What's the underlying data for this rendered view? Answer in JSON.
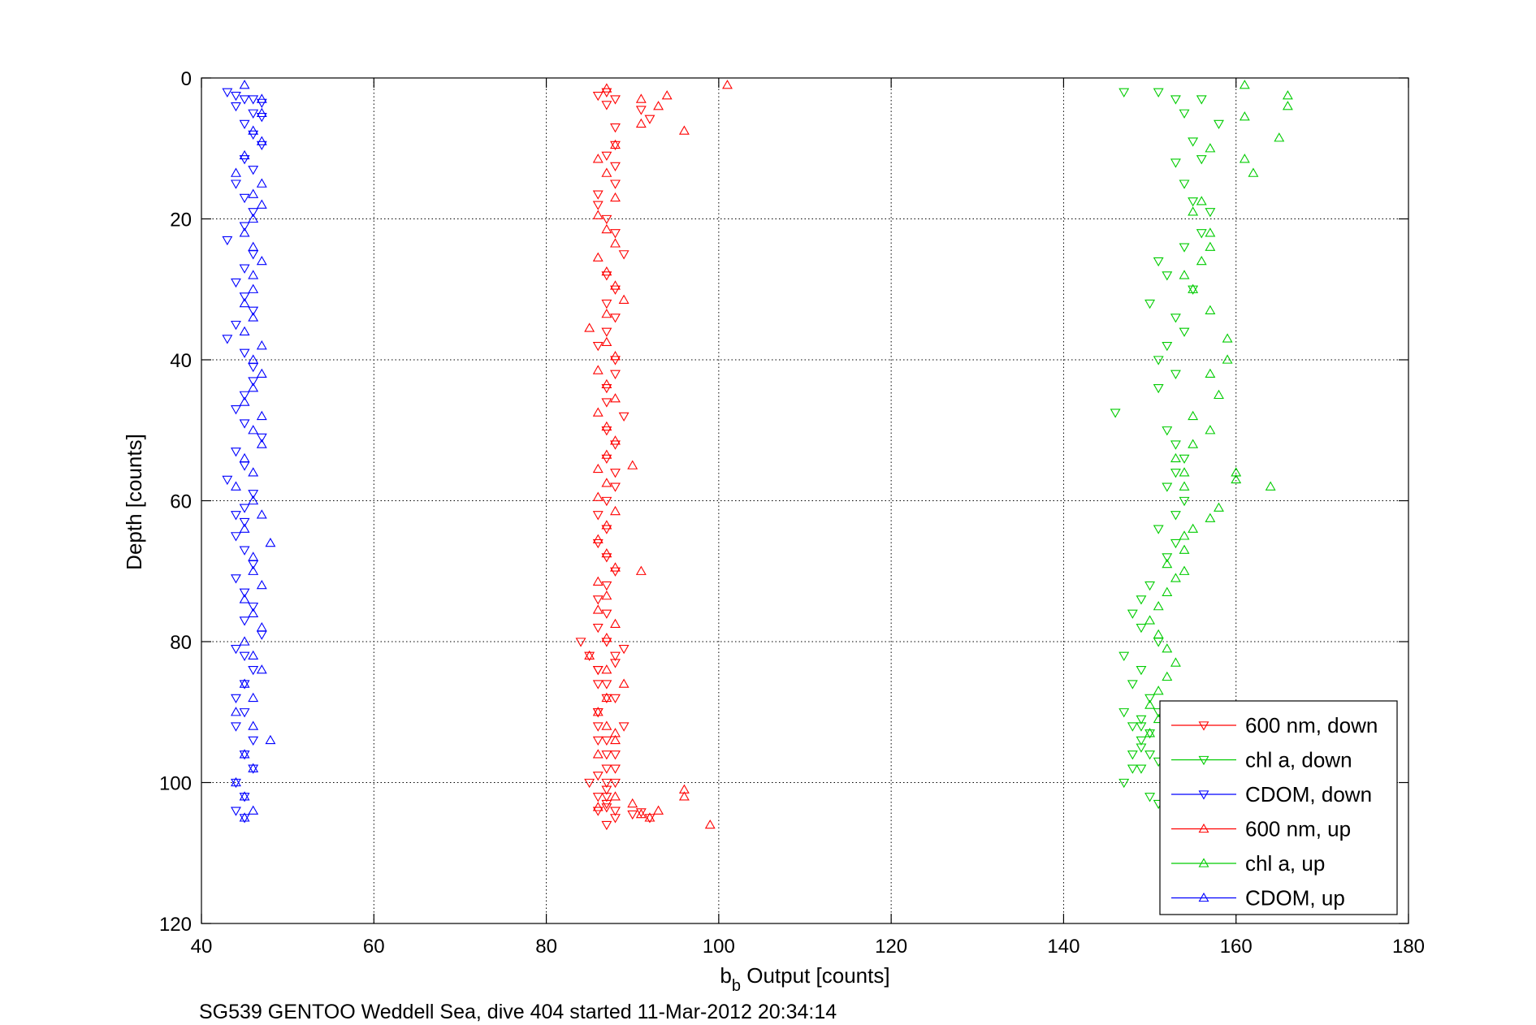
{
  "chart_data": {
    "type": "scatter",
    "xlabel_main": "b",
    "xlabel_sub": "b",
    "xlabel_rest": " Output [counts]",
    "ylabel": "Depth [counts]",
    "footer": "SG539 GENTOO Weddell Sea, dive 404 started 11-Mar-2012 20:34:14",
    "xlim": [
      40,
      180
    ],
    "ylim": [
      0,
      120
    ],
    "y_reversed": true,
    "grid": true,
    "xticks": [
      40,
      60,
      80,
      100,
      120,
      140,
      160,
      180
    ],
    "yticks": [
      0,
      20,
      40,
      60,
      80,
      100,
      120
    ],
    "legend_position": "bottom-right",
    "series": [
      {
        "name": "600 nm, down",
        "color": "#ff0000",
        "marker": "triangle-down",
        "x": [
          87,
          86,
          88,
          87,
          91,
          92,
          88,
          88,
          87,
          88,
          88,
          86,
          86,
          87,
          88,
          89,
          87,
          88,
          87,
          88,
          87,
          86,
          88,
          88,
          87,
          87,
          89,
          87,
          88,
          87,
          88,
          88,
          87,
          86,
          87,
          86,
          87,
          88,
          87,
          86,
          87,
          86,
          87,
          89,
          88,
          88,
          86,
          87,
          88,
          86,
          86,
          87,
          87,
          88,
          86,
          88,
          87,
          87,
          84,
          85,
          86,
          86,
          87,
          86,
          89,
          86,
          88,
          87,
          87,
          86,
          87,
          88,
          85,
          87,
          86,
          88,
          90,
          92,
          91,
          87
        ],
        "y": [
          2,
          2.5,
          3,
          3.8,
          4.5,
          5.8,
          7,
          9.5,
          11,
          12.5,
          15,
          16.5,
          18,
          20,
          22,
          25,
          28,
          30,
          32,
          34,
          36,
          38,
          40,
          42,
          44,
          46,
          48,
          50,
          52,
          54,
          56,
          58,
          60,
          62,
          64,
          66,
          68,
          70,
          72,
          74,
          76,
          78,
          80,
          81,
          82,
          83,
          84,
          86,
          88,
          90,
          92,
          94,
          96,
          98,
          99,
          100,
          101,
          102,
          80,
          82,
          84,
          86,
          88,
          90,
          92,
          94,
          96,
          98,
          100,
          102,
          103.5,
          104,
          100,
          103,
          104,
          105,
          104.5,
          105,
          104.2,
          106
        ]
      },
      {
        "name": "chl a, down",
        "color": "#00cc00",
        "marker": "triangle-down",
        "x": [
          147,
          151,
          153,
          156,
          154,
          155,
          158,
          156,
          153,
          154,
          155,
          157,
          156,
          154,
          151,
          152,
          155,
          150,
          153,
          154,
          152,
          151,
          153,
          151,
          146,
          152,
          153,
          154,
          153,
          152,
          154,
          153,
          151,
          153,
          152,
          150,
          149,
          148,
          149,
          151,
          147,
          149,
          148,
          150,
          147,
          149,
          148,
          150,
          149,
          148,
          151,
          149,
          147,
          152,
          150,
          151,
          149,
          148,
          150,
          151,
          149
        ],
        "y": [
          2,
          2,
          3,
          3,
          5,
          9,
          6.5,
          11.5,
          12,
          15,
          17.5,
          19,
          22,
          24,
          26,
          28,
          30,
          32,
          34,
          36,
          38,
          40,
          42,
          44,
          47.5,
          50,
          52,
          54,
          56,
          58,
          60,
          62,
          64,
          66,
          68,
          72,
          74,
          76,
          78,
          80,
          82,
          84,
          86,
          88,
          90,
          91,
          92,
          93,
          94,
          96,
          97,
          98,
          100,
          101,
          102,
          103,
          95,
          98,
          96,
          90,
          92
        ]
      },
      {
        "name": "CDOM, down",
        "color": "#0000ff",
        "marker": "triangle-down",
        "x": [
          43,
          44,
          45,
          46,
          47,
          44,
          46,
          47,
          45,
          46,
          47,
          45,
          46,
          44,
          45,
          46,
          45,
          43,
          46,
          45,
          44,
          45,
          46,
          44,
          43,
          45,
          46,
          46,
          45,
          44,
          45,
          47,
          44,
          45,
          43,
          46,
          45,
          44,
          45,
          44,
          45,
          46,
          44,
          45,
          46,
          45,
          47,
          44,
          45,
          46,
          45,
          44,
          45,
          44,
          46,
          45,
          46,
          44,
          45,
          44,
          45
        ],
        "y": [
          2,
          2.5,
          3,
          3,
          3.5,
          4,
          5,
          5.5,
          6.5,
          8,
          9.5,
          11.5,
          13,
          15,
          17,
          19,
          21,
          23,
          25,
          27,
          29,
          31,
          33,
          35,
          37,
          39,
          41,
          43,
          45,
          47,
          49,
          51,
          53,
          55,
          57,
          59,
          61,
          62,
          63,
          65,
          67,
          69,
          71,
          73,
          75,
          77,
          79,
          81,
          82,
          84,
          86,
          88,
          90,
          92,
          94,
          96,
          98,
          100,
          102,
          104,
          105
        ]
      },
      {
        "name": "600 nm, up",
        "color": "#ff0000",
        "marker": "triangle-up",
        "x": [
          101,
          87,
          91,
          94,
          93,
          91,
          96,
          88,
          86,
          87,
          88,
          86,
          87,
          88,
          86,
          87,
          88,
          89,
          87,
          85,
          87,
          88,
          86,
          87,
          88,
          86,
          87,
          88,
          87,
          86,
          87,
          86,
          88,
          90,
          87,
          86,
          87,
          88,
          86,
          91,
          87,
          86,
          88,
          87,
          85,
          87,
          89,
          87,
          86,
          87,
          88,
          86,
          88,
          96,
          96,
          93,
          92,
          91,
          90,
          99,
          88,
          86
        ],
        "y": [
          1,
          1.5,
          3,
          2.5,
          4,
          6.5,
          7.5,
          9.5,
          11.5,
          13.5,
          17,
          19.5,
          21.5,
          23.5,
          25.5,
          27.5,
          29.5,
          31.5,
          33.5,
          35.5,
          37.5,
          39.5,
          41.5,
          43.5,
          45.5,
          47.5,
          49.5,
          51.5,
          53.5,
          55.5,
          57.5,
          59.5,
          61.5,
          55,
          63.5,
          65.5,
          67.5,
          69.5,
          71.5,
          70,
          73.5,
          75.5,
          77.5,
          79.5,
          82,
          84,
          86,
          88,
          90,
          92,
          94,
          96,
          93,
          102,
          101,
          104,
          105,
          104.5,
          103,
          106,
          102,
          103.5
        ]
      },
      {
        "name": "chl a, up",
        "color": "#00cc00",
        "marker": "triangle-up",
        "x": [
          161,
          166,
          166,
          161,
          165,
          157,
          161,
          162,
          156,
          155,
          157,
          157,
          156,
          154,
          155,
          157,
          159,
          159,
          157,
          158,
          155,
          157,
          155,
          153,
          154,
          154,
          160,
          164,
          160,
          158,
          157,
          155,
          154,
          154,
          152,
          153,
          152,
          151,
          150,
          151,
          152,
          153,
          152,
          151,
          150,
          151,
          150,
          154
        ],
        "y": [
          1,
          2.5,
          4,
          5.5,
          8.5,
          10,
          11.5,
          13.5,
          17.5,
          19,
          22,
          24,
          26,
          28,
          30,
          33,
          37,
          40,
          42,
          45,
          48,
          50,
          52,
          54,
          56,
          58,
          56,
          58,
          57,
          61,
          62.5,
          64,
          65,
          67,
          69,
          71,
          73,
          75,
          77,
          79,
          81,
          83,
          85,
          87,
          89,
          91,
          93,
          70
        ]
      },
      {
        "name": "CDOM, up",
        "color": "#0000ff",
        "marker": "triangle-up",
        "x": [
          45,
          47,
          47,
          46,
          47,
          45,
          44,
          47,
          46,
          47,
          46,
          45,
          46,
          47,
          46,
          46,
          45,
          46,
          45,
          47,
          46,
          47,
          46,
          45,
          47,
          46,
          47,
          45,
          46,
          44,
          46,
          47,
          45,
          48,
          46,
          46,
          47,
          45,
          46,
          47,
          45,
          46,
          47,
          45,
          46,
          44,
          46,
          48,
          45,
          46,
          44,
          45,
          46,
          45
        ],
        "y": [
          1,
          3,
          5,
          7.5,
          9,
          11,
          13.5,
          15,
          16.5,
          18,
          20,
          22,
          24,
          26,
          28,
          30,
          32,
          34,
          36,
          38,
          40,
          42,
          44,
          46,
          48,
          50,
          52,
          54,
          56,
          58,
          60,
          62,
          64,
          66,
          68,
          70,
          72,
          74,
          76,
          78,
          80,
          82,
          84,
          86,
          88,
          90,
          92,
          94,
          96,
          98,
          100,
          102,
          104,
          105
        ]
      }
    ]
  }
}
